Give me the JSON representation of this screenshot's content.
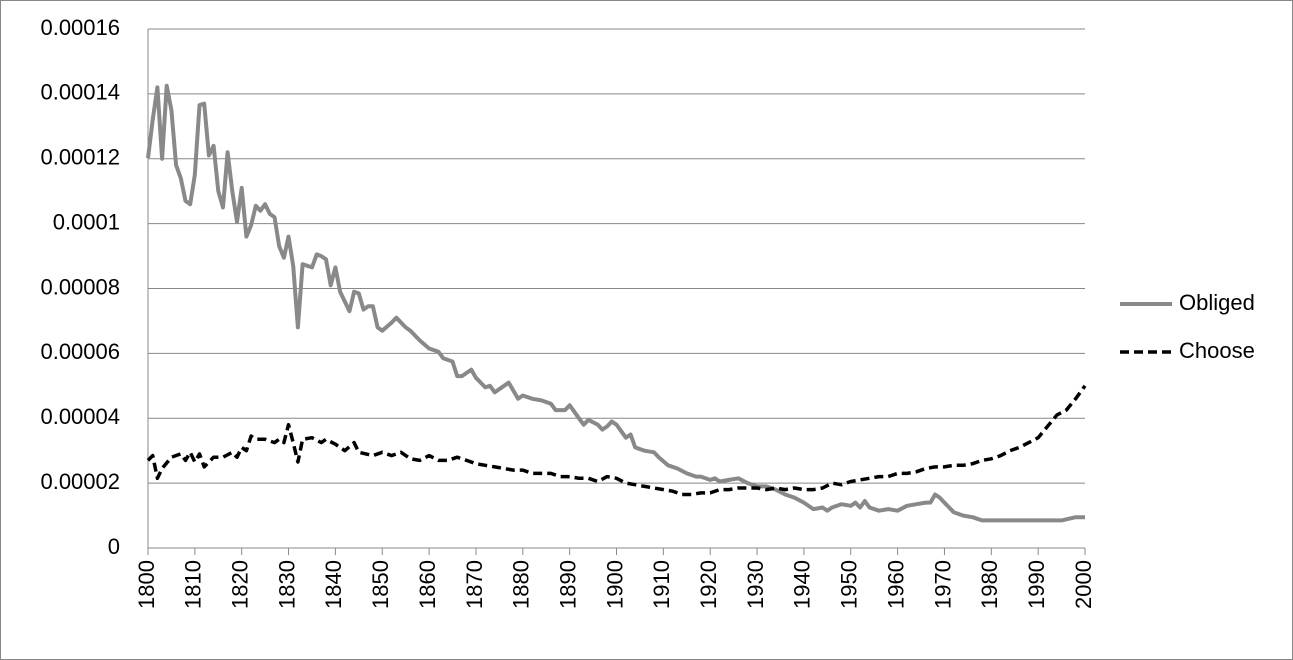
{
  "chart_data": {
    "type": "line",
    "xlim": [
      1800,
      2000
    ],
    "xticks": [
      1800,
      1810,
      1820,
      1830,
      1840,
      1850,
      1860,
      1870,
      1880,
      1890,
      1900,
      1910,
      1920,
      1930,
      1940,
      1950,
      1960,
      1970,
      1980,
      1990,
      2000
    ],
    "ylim": [
      0,
      0.00016
    ],
    "yticks": [
      0,
      2e-05,
      4e-05,
      6e-05,
      8e-05,
      0.0001,
      0.00012,
      0.00014,
      0.00016
    ],
    "grid": true,
    "legend": "right",
    "series": [
      {
        "name": "Obliged",
        "color": "#898989",
        "dashed": false,
        "x": [
          1800,
          1801,
          1802,
          1803,
          1804,
          1805,
          1806,
          1807,
          1808,
          1809,
          1810,
          1811,
          1812,
          1813,
          1814,
          1815,
          1816,
          1817,
          1818,
          1819,
          1820,
          1821,
          1822,
          1823,
          1824,
          1825,
          1826,
          1827,
          1828,
          1829,
          1830,
          1831,
          1832,
          1833,
          1834,
          1835,
          1836,
          1837,
          1838,
          1839,
          1840,
          1841,
          1842,
          1843,
          1844,
          1845,
          1846,
          1847,
          1848,
          1849,
          1850,
          1852,
          1853,
          1855,
          1856,
          1858,
          1860,
          1862,
          1863,
          1865,
          1866,
          1867,
          1869,
          1870,
          1872,
          1873,
          1874,
          1876,
          1877,
          1879,
          1880,
          1882,
          1884,
          1886,
          1887,
          1889,
          1890,
          1892,
          1893,
          1894,
          1896,
          1897,
          1898,
          1899,
          1900,
          1902,
          1903,
          1904,
          1906,
          1908,
          1909,
          1911,
          1913,
          1915,
          1917,
          1918,
          1920,
          1921,
          1922,
          1924,
          1926,
          1928,
          1930,
          1932,
          1934,
          1936,
          1938,
          1940,
          1942,
          1944,
          1945,
          1946,
          1948,
          1950,
          1951,
          1952,
          1953,
          1954,
          1956,
          1958,
          1960,
          1962,
          1964,
          1966,
          1967,
          1968,
          1969,
          1970,
          1972,
          1974,
          1976,
          1978,
          1980,
          1985,
          1990,
          1995,
          1998,
          2000
        ],
        "values": [
          0.0001202,
          0.000132,
          0.000142,
          0.00012,
          0.0001425,
          0.000135,
          0.000118,
          0.000114,
          0.000107,
          0.000106,
          0.000115,
          0.0001365,
          0.000137,
          0.000121,
          0.000124,
          0.00011,
          0.000105,
          0.000122,
          0.00011,
          0.0001005,
          0.000111,
          9.6e-05,
          9.95e-05,
          0.0001055,
          0.000104,
          0.000106,
          0.000103,
          0.000102,
          9.3e-05,
          8.95e-05,
          9.6e-05,
          8.7e-05,
          6.8e-05,
          8.75e-05,
          8.7e-05,
          8.65e-05,
          9.05e-05,
          9e-05,
          8.9e-05,
          8.1e-05,
          8.65e-05,
          7.9e-05,
          7.6e-05,
          7.3e-05,
          7.9e-05,
          7.85e-05,
          7.35e-05,
          7.45e-05,
          7.45e-05,
          6.8e-05,
          6.7e-05,
          6.95e-05,
          7.1e-05,
          6.8e-05,
          6.7e-05,
          6.4e-05,
          6.15e-05,
          6.05e-05,
          5.85e-05,
          5.75e-05,
          5.3e-05,
          5.3e-05,
          5.5e-05,
          5.25e-05,
          4.95e-05,
          5e-05,
          4.8e-05,
          5e-05,
          5.1e-05,
          4.6e-05,
          4.7e-05,
          4.6e-05,
          4.55e-05,
          4.45e-05,
          4.25e-05,
          4.25e-05,
          4.4e-05,
          4e-05,
          3.8e-05,
          3.95e-05,
          3.8e-05,
          3.65e-05,
          3.75e-05,
          3.9e-05,
          3.8e-05,
          3.4e-05,
          3.5e-05,
          3.1e-05,
          3e-05,
          2.95e-05,
          2.8e-05,
          2.55e-05,
          2.45e-05,
          2.3e-05,
          2.2e-05,
          2.2e-05,
          2.1e-05,
          2.15e-05,
          2.05e-05,
          2.1e-05,
          2.15e-05,
          2e-05,
          1.9e-05,
          1.9e-05,
          1.8e-05,
          1.65e-05,
          1.55e-05,
          1.4e-05,
          1.2e-05,
          1.25e-05,
          1.15e-05,
          1.25e-05,
          1.35e-05,
          1.3e-05,
          1.4e-05,
          1.25e-05,
          1.45e-05,
          1.25e-05,
          1.15e-05,
          1.2e-05,
          1.15e-05,
          1.3e-05,
          1.35e-05,
          1.4e-05,
          1.4e-05,
          1.65e-05,
          1.55e-05,
          1.4e-05,
          1.1e-05,
          1e-05,
          9.5e-06,
          8.5e-06,
          8.5e-06,
          8.5e-06,
          8.5e-06,
          8.5e-06,
          9.5e-06,
          9.5e-06
        ]
      },
      {
        "name": "Choose",
        "color": "#000000",
        "dashed": true,
        "x": [
          1800,
          1801,
          1802,
          1803,
          1805,
          1807,
          1808,
          1809,
          1810,
          1811,
          1812,
          1814,
          1816,
          1818,
          1819,
          1820,
          1821,
          1822,
          1823,
          1825,
          1827,
          1828,
          1829,
          1830,
          1831,
          1832,
          1833,
          1835,
          1837,
          1838,
          1840,
          1842,
          1844,
          1845,
          1848,
          1850,
          1852,
          1854,
          1856,
          1858,
          1860,
          1862,
          1864,
          1866,
          1868,
          1870,
          1872,
          1874,
          1876,
          1878,
          1880,
          1882,
          1884,
          1886,
          1888,
          1890,
          1892,
          1894,
          1896,
          1898,
          1900,
          1902,
          1904,
          1906,
          1908,
          1910,
          1912,
          1914,
          1916,
          1918,
          1920,
          1922,
          1924,
          1926,
          1928,
          1930,
          1932,
          1934,
          1936,
          1938,
          1940,
          1942,
          1944,
          1946,
          1948,
          1950,
          1952,
          1954,
          1956,
          1958,
          1960,
          1962,
          1964,
          1966,
          1968,
          1970,
          1972,
          1974,
          1976,
          1978,
          1980,
          1982,
          1984,
          1986,
          1988,
          1990,
          1992,
          1994,
          1996,
          1998,
          2000
        ],
        "values": [
          2.7e-05,
          2.85e-05,
          2.15e-05,
          2.45e-05,
          2.8e-05,
          2.9e-05,
          2.7e-05,
          2.95e-05,
          2.65e-05,
          2.9e-05,
          2.5e-05,
          2.8e-05,
          2.8e-05,
          2.95e-05,
          2.8e-05,
          3.1e-05,
          3e-05,
          3.45e-05,
          3.35e-05,
          3.35e-05,
          3.25e-05,
          3.35e-05,
          3.25e-05,
          3.8e-05,
          3.25e-05,
          2.65e-05,
          3.35e-05,
          3.4e-05,
          3.25e-05,
          3.35e-05,
          3.2e-05,
          3e-05,
          3.25e-05,
          2.95e-05,
          2.85e-05,
          2.95e-05,
          2.85e-05,
          2.95e-05,
          2.75e-05,
          2.7e-05,
          2.85e-05,
          2.7e-05,
          2.7e-05,
          2.8e-05,
          2.7e-05,
          2.6e-05,
          2.55e-05,
          2.5e-05,
          2.45e-05,
          2.4e-05,
          2.4e-05,
          2.3e-05,
          2.3e-05,
          2.3e-05,
          2.2e-05,
          2.2e-05,
          2.15e-05,
          2.15e-05,
          2.05e-05,
          2.2e-05,
          2.15e-05,
          2e-05,
          1.95e-05,
          1.9e-05,
          1.85e-05,
          1.8e-05,
          1.75e-05,
          1.65e-05,
          1.65e-05,
          1.7e-05,
          1.7e-05,
          1.8e-05,
          1.8e-05,
          1.85e-05,
          1.85e-05,
          1.85e-05,
          1.8e-05,
          1.85e-05,
          1.8e-05,
          1.85e-05,
          1.8e-05,
          1.8e-05,
          1.85e-05,
          2e-05,
          1.95e-05,
          2.05e-05,
          2.1e-05,
          2.15e-05,
          2.2e-05,
          2.2e-05,
          2.3e-05,
          2.3e-05,
          2.35e-05,
          2.45e-05,
          2.5e-05,
          2.5e-05,
          2.55e-05,
          2.55e-05,
          2.6e-05,
          2.7e-05,
          2.75e-05,
          2.85e-05,
          3e-05,
          3.1e-05,
          3.25e-05,
          3.4e-05,
          3.75e-05,
          4.1e-05,
          4.25e-05,
          4.6e-05,
          5e-05
        ]
      }
    ]
  }
}
